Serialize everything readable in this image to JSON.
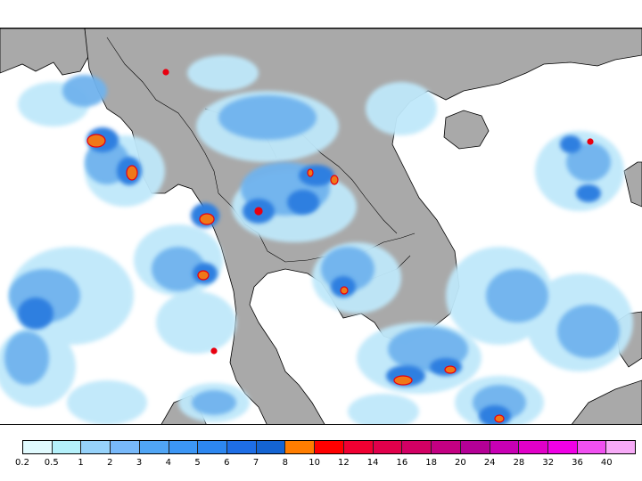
{
  "colors": {
    "land": "#a9a9a9",
    "ocean": "#ffffff",
    "coast": "#000000",
    "rain_light": "#bfe8fa",
    "rain_mid": "#6fb3ee",
    "rain_heavy": "#2f7fe0",
    "rain_extreme_orange": "#f07818",
    "rain_extreme_red": "#e80010"
  },
  "legend": {
    "labels": [
      "0.2",
      "0.5",
      "1",
      "2",
      "3",
      "4",
      "5",
      "6",
      "7",
      "8",
      "10",
      "12",
      "14",
      "16",
      "18",
      "20",
      "24",
      "28",
      "32",
      "36",
      "40"
    ],
    "colors": [
      "#e0fafe",
      "#b4f0fa",
      "#96d2fa",
      "#78b9fa",
      "#50a5f5",
      "#3c96f5",
      "#2d87f0",
      "#1e6ee6",
      "#1464d2",
      "#ff7d00",
      "#ff0000",
      "#f00032",
      "#e1004b",
      "#d20064",
      "#c30082",
      "#b40096",
      "#c800b4",
      "#e100c8",
      "#f000e6",
      "#f050f0",
      "#f7aaf7"
    ]
  }
}
